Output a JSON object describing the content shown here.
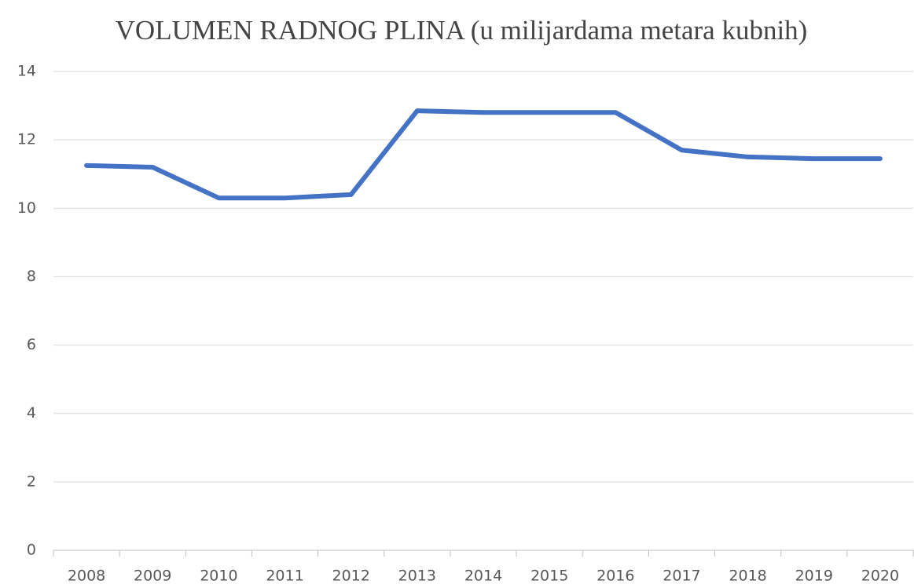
{
  "chart_data": {
    "type": "line",
    "title": "VOLUMEN RADNOG PLINA (u milijardama metara kubnih)",
    "categories": [
      "2008",
      "2009",
      "2010",
      "2011",
      "2012",
      "2013",
      "2014",
      "2015",
      "2016",
      "2017",
      "2018",
      "2019",
      "2020"
    ],
    "series": [
      {
        "name": "Volumen radnog plina",
        "color": "#4472c4",
        "values": [
          11.25,
          11.2,
          10.3,
          10.3,
          10.4,
          12.85,
          12.8,
          12.8,
          12.8,
          11.7,
          11.5,
          11.45,
          11.45
        ]
      }
    ],
    "ylim": [
      0,
      14
    ],
    "yticks": [
      0,
      2,
      4,
      6,
      8,
      10,
      12,
      14
    ],
    "grid": true,
    "legend": false
  }
}
